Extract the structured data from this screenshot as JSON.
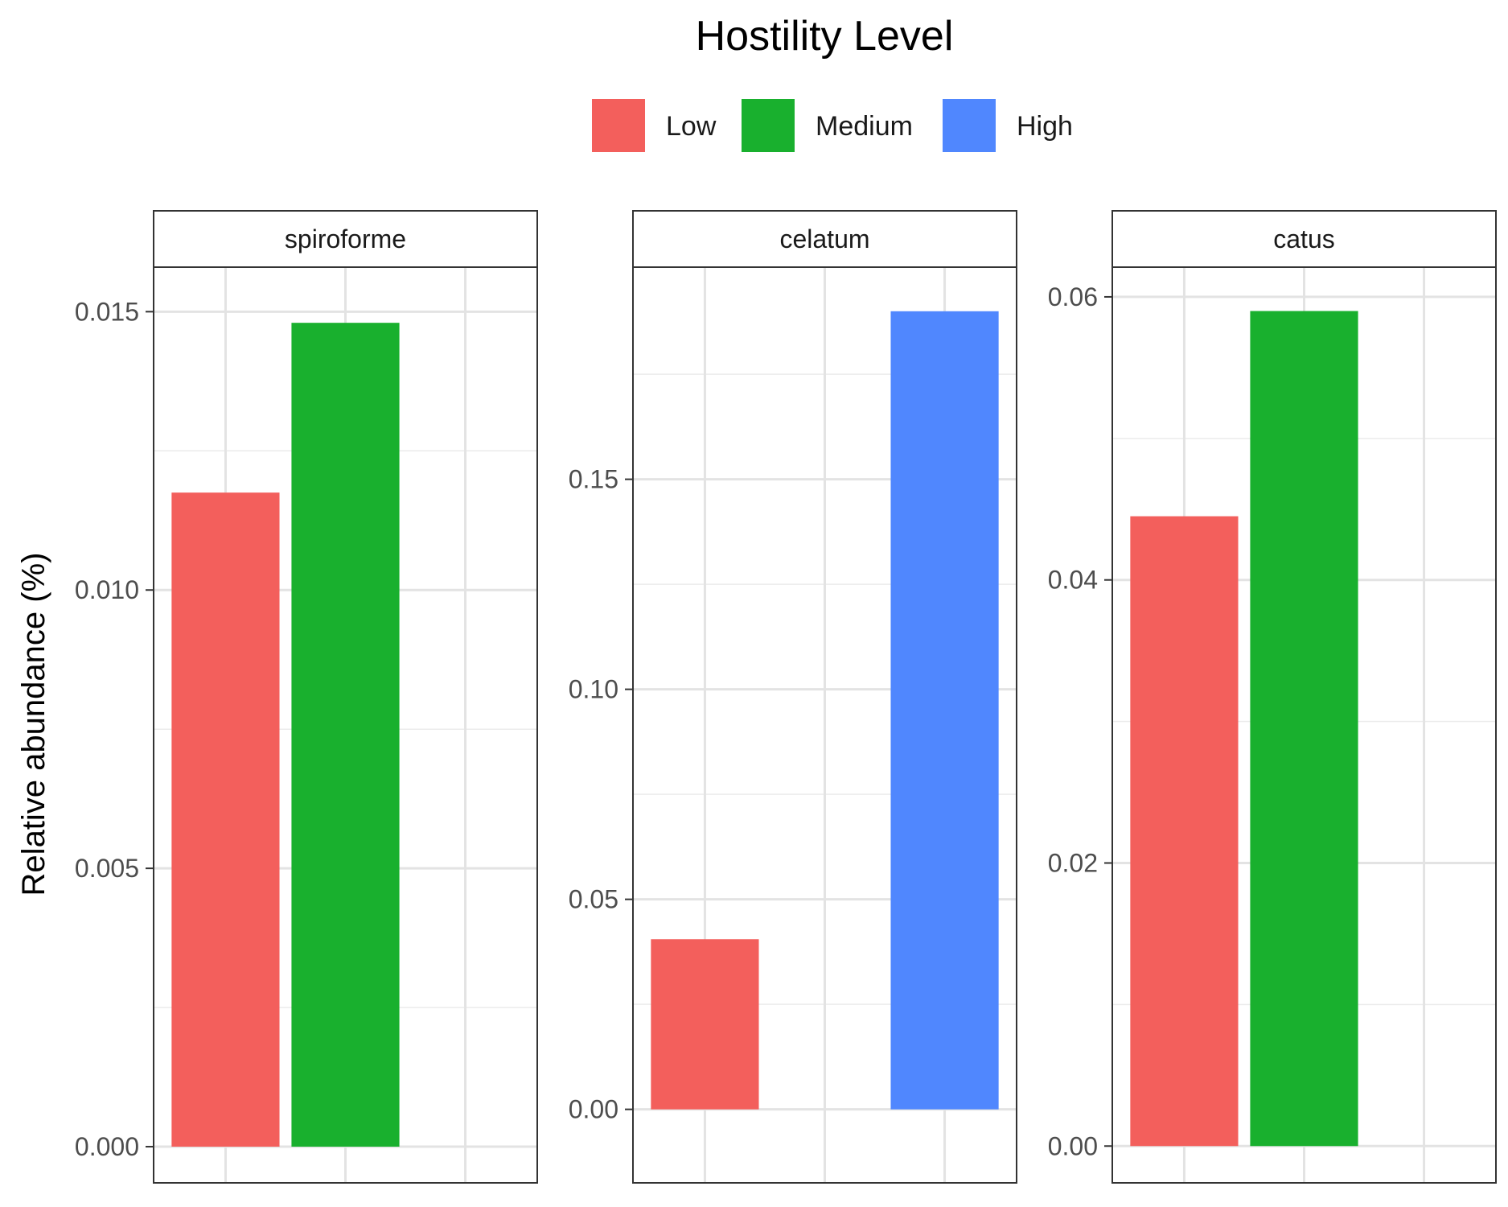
{
  "chart_data": {
    "type": "bar",
    "legend": {
      "title": "Hostility Level",
      "position": "top",
      "entries": [
        {
          "label": "Low",
          "color": "#F35F5C"
        },
        {
          "label": "Medium",
          "color": "#19B02E"
        },
        {
          "label": "High",
          "color": "#5087FE"
        }
      ]
    },
    "ylabel": "Relative abundance (%)",
    "grid": true,
    "facet_scales": "free",
    "categories": [
      "Low",
      "Medium",
      "High"
    ],
    "panels": [
      {
        "title": "spiroforme",
        "ylim": [
          -0.00065,
          0.0158
        ],
        "ticks": [
          {
            "value": 0,
            "label": "0.000"
          },
          {
            "value": 0.005,
            "label": "0.005"
          },
          {
            "value": 0.01,
            "label": "0.010"
          },
          {
            "value": 0.015,
            "label": "0.015"
          }
        ],
        "series": [
          {
            "name": "Low",
            "values": [
              0.01175,
              null,
              null
            ]
          },
          {
            "name": "Medium",
            "values": [
              null,
              0.0148,
              null
            ]
          }
        ]
      },
      {
        "title": "celatum",
        "ylim": [
          -0.0175,
          0.2005
        ],
        "ticks": [
          {
            "value": 0,
            "label": "0.00"
          },
          {
            "value": 0.05,
            "label": "0.05"
          },
          {
            "value": 0.1,
            "label": "0.10"
          },
          {
            "value": 0.15,
            "label": "0.15"
          }
        ],
        "series": [
          {
            "name": "Low",
            "values": [
              0.0405,
              null,
              null
            ]
          },
          {
            "name": "High",
            "values": [
              null,
              null,
              0.19
            ]
          }
        ]
      },
      {
        "title": "catus",
        "ylim": [
          -0.0026,
          0.0621
        ],
        "ticks": [
          {
            "value": 0,
            "label": "0.00"
          },
          {
            "value": 0.02,
            "label": "0.02"
          },
          {
            "value": 0.04,
            "label": "0.04"
          },
          {
            "value": 0.06,
            "label": "0.06"
          }
        ],
        "series": [
          {
            "name": "Low",
            "values": [
              0.0445,
              null,
              null
            ]
          },
          {
            "name": "Medium",
            "values": [
              null,
              0.059,
              null
            ]
          }
        ]
      }
    ]
  }
}
